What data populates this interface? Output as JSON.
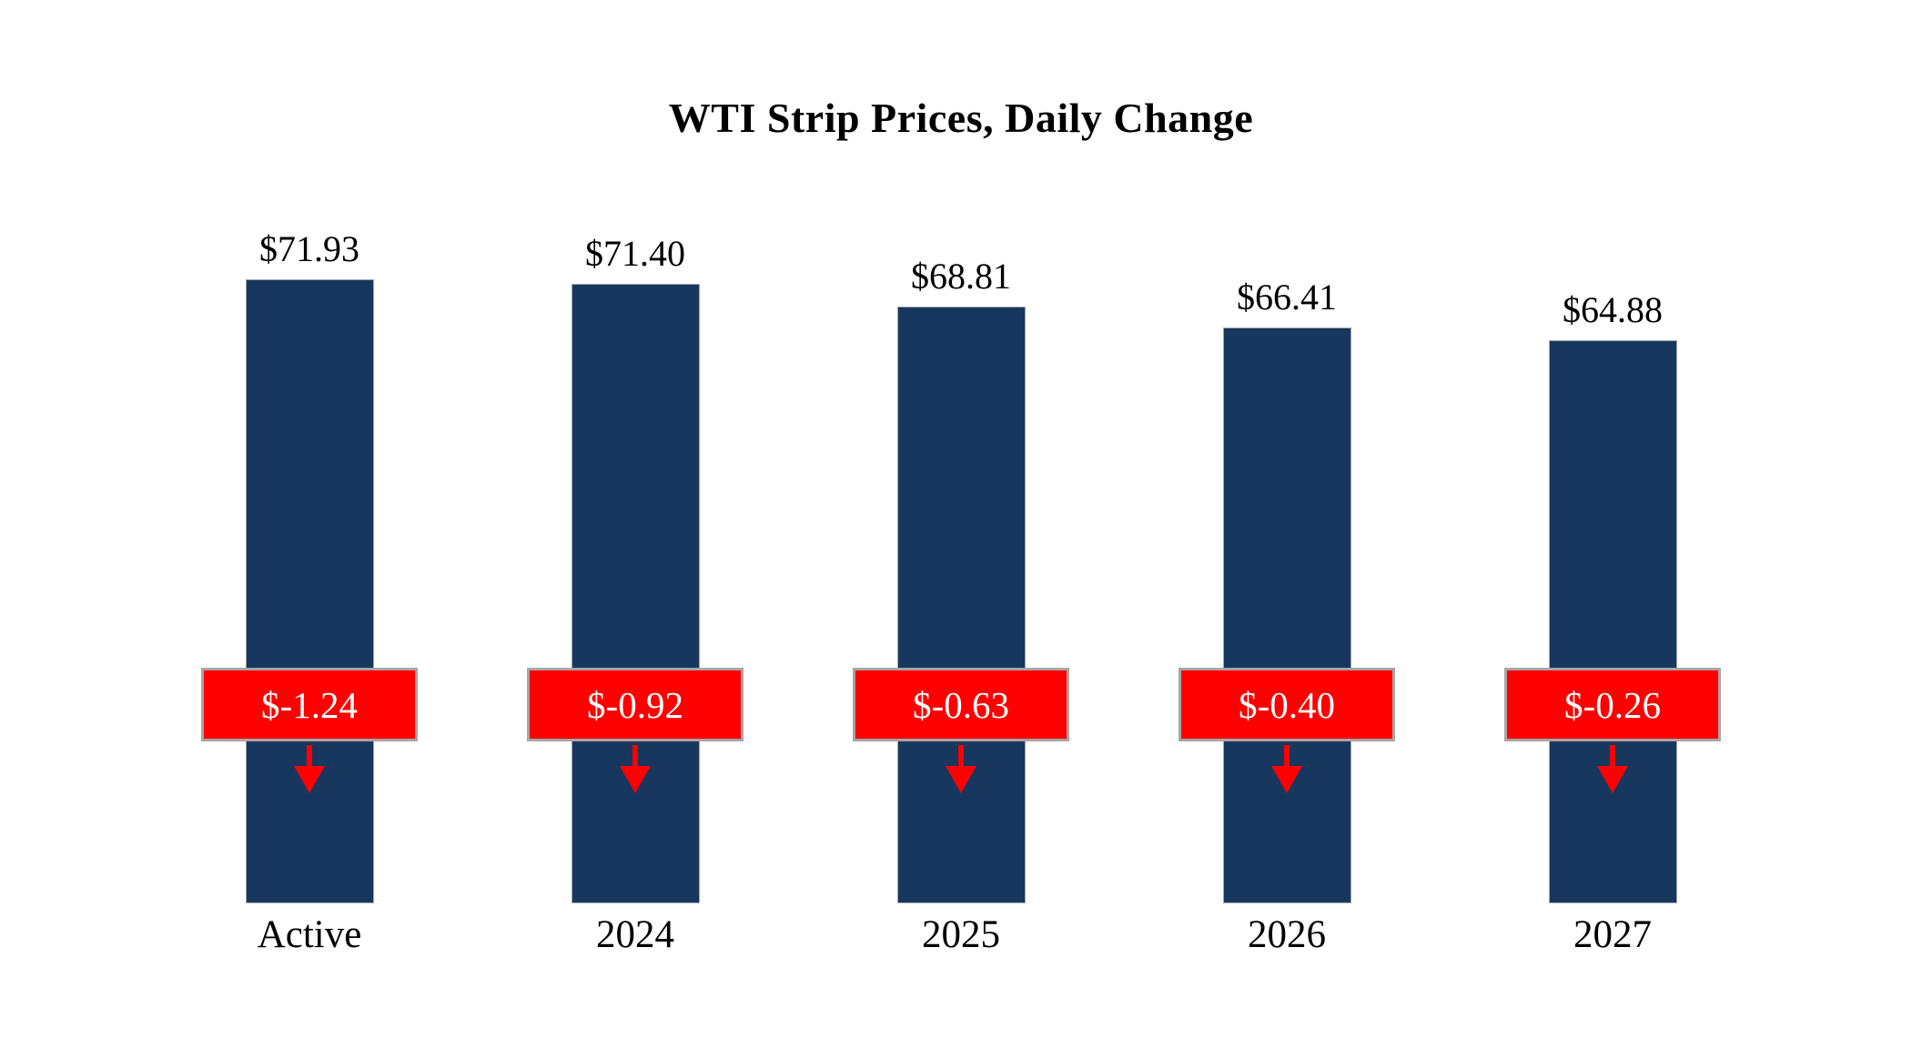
{
  "title": "WTI Strip Prices, Daily Change",
  "chart_data": {
    "type": "bar",
    "title": "WTI Strip Prices, Daily Change",
    "categories": [
      "Active",
      "2024",
      "2025",
      "2026",
      "2027"
    ],
    "values": [
      71.93,
      71.4,
      68.81,
      66.41,
      64.88
    ],
    "value_labels": [
      "$71.93",
      "$71.40",
      "$68.81",
      "$66.41",
      "$64.88"
    ],
    "daily_changes": [
      -1.24,
      -0.92,
      -0.63,
      -0.4,
      -0.26
    ],
    "change_labels": [
      "$-1.24",
      "$-0.92",
      "$-0.63",
      "$-0.40",
      "$-0.26"
    ],
    "xlabel": "",
    "ylabel": "",
    "ylim": [
      0,
      72
    ],
    "grid": false,
    "legend": false,
    "bar_color": "#17375E",
    "badge_color": "#FE0000",
    "badge_border_color": "#A6A6A6",
    "arrow_color": "#FE0000"
  }
}
